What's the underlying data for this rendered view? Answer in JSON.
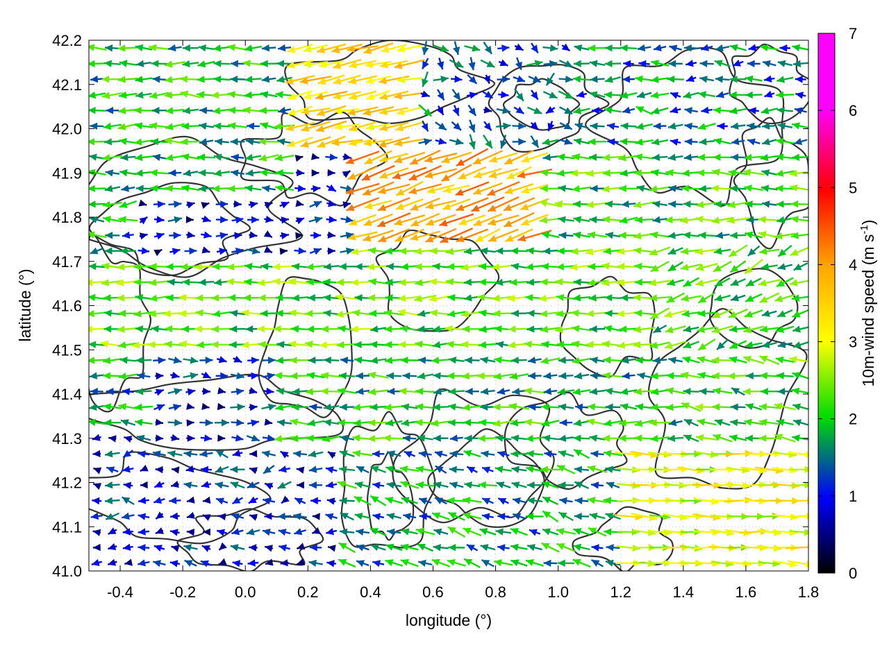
{
  "chart_data": {
    "type": "quiver",
    "xlabel": "longitude (°)",
    "ylabel": "latitude (°)",
    "xlim": [
      -0.5,
      1.8
    ],
    "ylim": [
      41.0,
      42.2
    ],
    "xticks": [
      "-0.4",
      "-0.2",
      "0.0",
      "0.2",
      "0.4",
      "0.6",
      "0.8",
      "1.0",
      "1.2",
      "1.4",
      "1.6",
      "1.8"
    ],
    "yticks": [
      "41.0",
      "41.1",
      "41.2",
      "41.3",
      "41.4",
      "41.5",
      "41.6",
      "41.7",
      "41.8",
      "41.9",
      "42.0",
      "42.1",
      "42.2"
    ],
    "grid": true,
    "colorbar": {
      "label": "10m-wind speed (m s-1)",
      "label_main": "10m-wind speed (m s",
      "label_sup": "-1",
      "label_end": ")",
      "range": [
        0,
        7
      ],
      "ticks": [
        "0",
        "1",
        "2",
        "3",
        "4",
        "5",
        "6",
        "7"
      ],
      "colors": [
        "#000000",
        "#0000ff",
        "#00dd00",
        "#ffff00",
        "#ffa500",
        "#ff0000",
        "#ff00ff"
      ]
    },
    "wind_regions": [
      {
        "lon": [
          -0.5,
          0.15
        ],
        "lat": [
          41.85,
          42.2
        ],
        "u": -1.9,
        "v": 0.0,
        "speed": 2.2
      },
      {
        "lon": [
          0.15,
          0.55
        ],
        "lat": [
          41.95,
          42.2
        ],
        "u": -3.5,
        "v": -0.8,
        "speed": 4.0
      },
      {
        "lon": [
          0.55,
          1.05
        ],
        "lat": [
          41.95,
          42.2
        ],
        "u": 0.4,
        "v": -0.3,
        "speed": 1.5
      },
      {
        "lon": [
          1.05,
          1.8
        ],
        "lat": [
          41.95,
          42.2
        ],
        "u": -1.4,
        "v": 0.0,
        "speed": 1.8
      },
      {
        "lon": [
          -0.35,
          0.35
        ],
        "lat": [
          41.7,
          41.95
        ],
        "u": 1.0,
        "v": 0.0,
        "speed": 1.1
      },
      {
        "lon": [
          0.35,
          0.95
        ],
        "lat": [
          41.75,
          41.95
        ],
        "u": -3.5,
        "v": -1.2,
        "speed": 4.5
      },
      {
        "lon": [
          0.95,
          1.8
        ],
        "lat": [
          41.75,
          41.95
        ],
        "u": -2.0,
        "v": 0.0,
        "speed": 2.4
      },
      {
        "lon": [
          -0.5,
          0.3
        ],
        "lat": [
          41.5,
          41.7
        ],
        "u": -2.6,
        "v": 0.0,
        "speed": 2.6
      },
      {
        "lon": [
          0.3,
          1.3
        ],
        "lat": [
          41.5,
          41.75
        ],
        "u": -2.4,
        "v": 0.0,
        "speed": 2.6
      },
      {
        "lon": [
          1.3,
          1.8
        ],
        "lat": [
          41.5,
          41.75
        ],
        "u": -1.5,
        "v": -0.5,
        "speed": 2.5
      },
      {
        "lon": [
          -0.3,
          0.1
        ],
        "lat": [
          41.3,
          41.5
        ],
        "u": 1.3,
        "v": 0.0,
        "speed": 1.2
      },
      {
        "lon": [
          0.1,
          1.4
        ],
        "lat": [
          41.3,
          41.5
        ],
        "u": -2.0,
        "v": 0.0,
        "speed": 2.2
      },
      {
        "lon": [
          1.4,
          1.8
        ],
        "lat": [
          41.3,
          41.5
        ],
        "u": -1.8,
        "v": 0.3,
        "speed": 2.5
      },
      {
        "lon": [
          -0.5,
          0.3
        ],
        "lat": [
          41.0,
          41.3
        ],
        "u": -1.0,
        "v": 0.0,
        "speed": 1.2
      },
      {
        "lon": [
          0.3,
          1.2
        ],
        "lat": [
          41.0,
          41.3
        ],
        "u": -1.6,
        "v": 0.4,
        "speed": 2.0
      },
      {
        "lon": [
          1.2,
          1.8
        ],
        "lat": [
          41.0,
          41.3
        ],
        "u": 3.4,
        "v": -0.2,
        "speed": 3.5
      }
    ],
    "topography": "contour lines"
  }
}
